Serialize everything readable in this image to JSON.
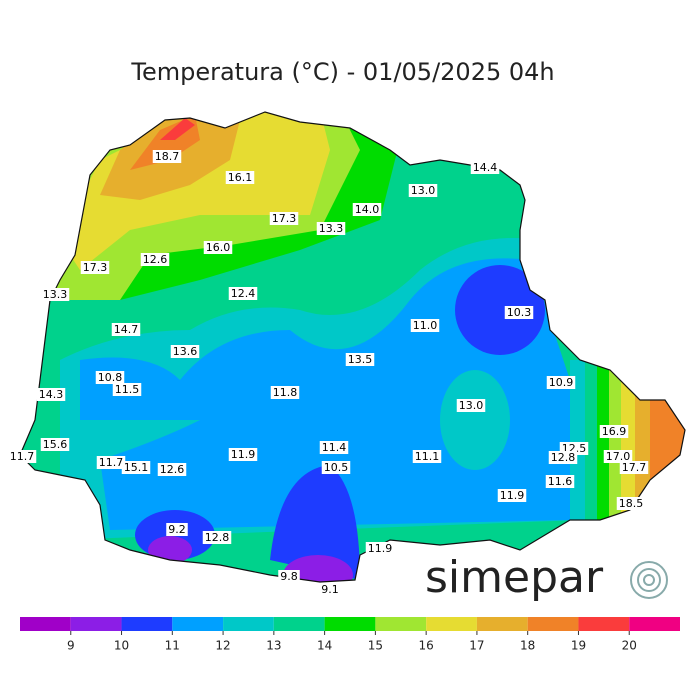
{
  "title": "Temperatura (°C) - 01/05/2025 04h",
  "contour_labels": [
    "18.7",
    "16.1",
    "14.4",
    "13.0",
    "14.0",
    "17.3",
    "13.3",
    "16.0",
    "12.6",
    "17.3",
    "13.3",
    "12.4",
    "10.3",
    "11.0",
    "14.7",
    "13.6",
    "13.5",
    "10.8",
    "11.5",
    "10.9",
    "14.3",
    "11.8",
    "13.0",
    "16.9",
    "15.6",
    "11.4",
    "12.5",
    "11.9",
    "11.1",
    "12.8",
    "17.0",
    "11.7",
    "11.7",
    "15.1",
    "12.6",
    "10.5",
    "17.7",
    "11.6",
    "11.9",
    "18.5",
    "9.2",
    "12.8",
    "11.9",
    "9.8",
    "9.1"
  ],
  "logo": "simepar",
  "colorbar": {
    "bounds": [
      8,
      9,
      10,
      11,
      12,
      13,
      14,
      15,
      16,
      17,
      18,
      19,
      20,
      21
    ],
    "colors": [
      "#a000c8",
      "#8c1ee6",
      "#1e3cff",
      "#00a0ff",
      "#00c8c8",
      "#00d28c",
      "#00dc00",
      "#a0e632",
      "#e6dc32",
      "#e6af2d",
      "#f08228",
      "#fa3c3c",
      "#f00082"
    ],
    "ticks": [
      9,
      10,
      11,
      12,
      13,
      14,
      15,
      16,
      17,
      18,
      19,
      20
    ]
  }
}
